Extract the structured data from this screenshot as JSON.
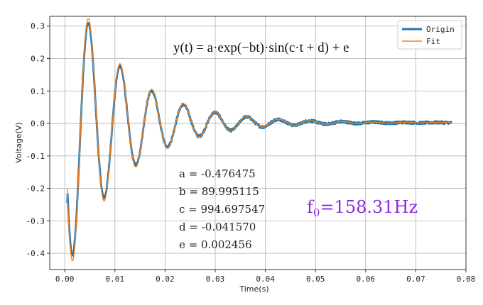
{
  "chart_data": {
    "type": "line",
    "formula": "y(t) = a·exp(−bt)·sin(c·t + d) + e",
    "xlabel": "Time(s)",
    "ylabel": "Voltage(V)",
    "xlim": [
      -0.003,
      0.08
    ],
    "ylim": [
      -0.45,
      0.33
    ],
    "x_ticks": [
      0.0,
      0.01,
      0.02,
      0.03,
      0.04,
      0.05,
      0.06,
      0.07,
      0.08
    ],
    "x_tick_labels": [
      "0.00",
      "0.01",
      "0.02",
      "0.03",
      "0.04",
      "0.05",
      "0.06",
      "0.07",
      "0.08"
    ],
    "y_ticks": [
      -0.4,
      -0.3,
      -0.2,
      -0.1,
      0.0,
      0.1,
      0.2,
      0.3
    ],
    "y_tick_labels": [
      "-0.4",
      "-0.3",
      "-0.2",
      "-0.1",
      "0.0",
      "0.1",
      "0.2",
      "0.3"
    ],
    "grid": true,
    "legend_position": "top-right",
    "params": {
      "a": -0.476475,
      "b": 89.995115,
      "c": 994.697547,
      "d": -0.04157,
      "e": 0.002456
    },
    "param_lines": [
      "a = -0.476475",
      "b = 89.995115",
      "c = 994.697547",
      "d = -0.041570",
      "e = 0.002456"
    ],
    "x_range": [
      0.0005,
      0.0772
    ],
    "series": [
      {
        "name": "Origin",
        "color": "#1f77b4",
        "kind": "measured",
        "x_start": 0.0005,
        "y_start": -0.245
      },
      {
        "name": "Fit",
        "color": "#ff7f0e",
        "kind": "fit",
        "x_start": 0.0005,
        "y_start": -0.2
      }
    ],
    "annotation": {
      "label": "f",
      "subscript": "0",
      "value": "=158.31Hz"
    }
  }
}
